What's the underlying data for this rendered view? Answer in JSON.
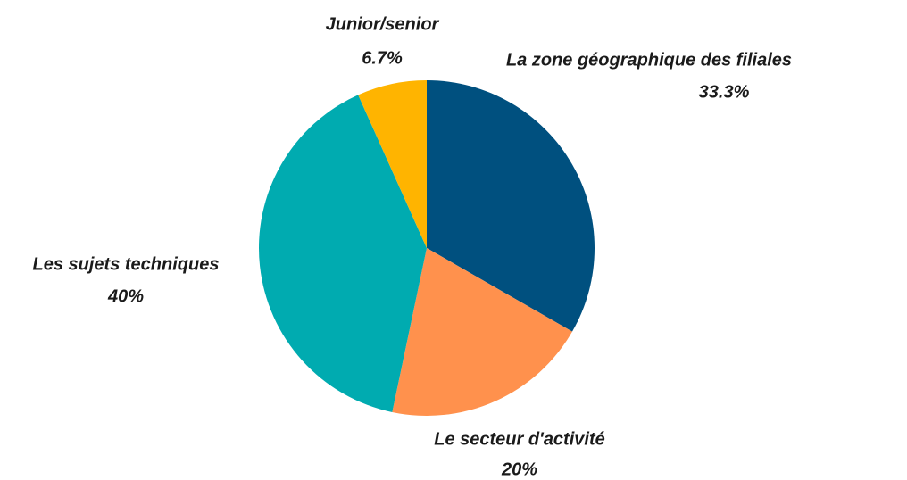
{
  "chart_data": {
    "type": "pie",
    "categories": [
      "La zone géographique des filiales",
      "Le secteur d'activité",
      "Les sujets techniques",
      "Junior/senior"
    ],
    "values": [
      33.3,
      20,
      40,
      6.7
    ],
    "value_labels": [
      "33.3%",
      "20%",
      "40%",
      "6.7%"
    ],
    "colors": [
      "#00507f",
      "#ff914d",
      "#00abb0",
      "#ffb400"
    ]
  }
}
